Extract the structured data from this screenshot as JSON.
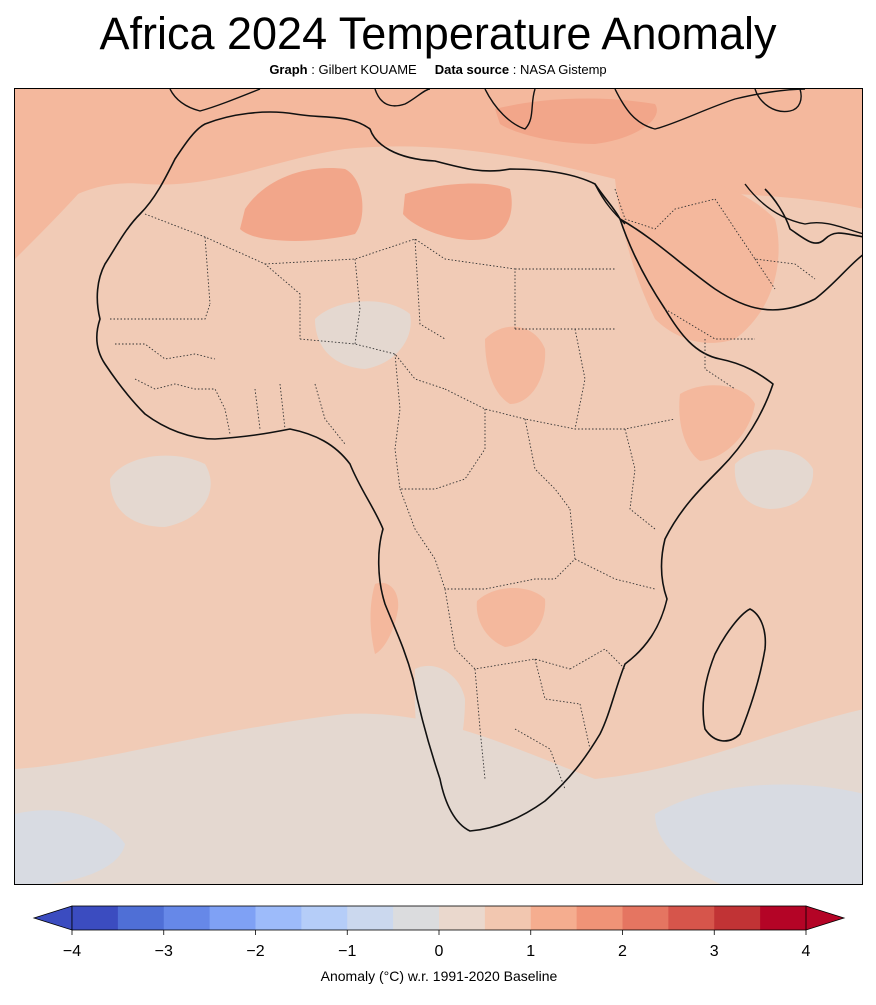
{
  "header": {
    "title": "Africa 2024 Temperature Anomaly",
    "credit_label": "Graph",
    "credit_value": "Gilbert KOUAME",
    "source_label": "Data source",
    "source_value": "NASA Gistemp"
  },
  "colorbar": {
    "ticks": [
      "−4",
      "−3",
      "−2",
      "−1",
      "0",
      "1",
      "2",
      "3",
      "4"
    ],
    "label": "Anomaly (°C) w.r. 1991-2020 Baseline",
    "range": [
      -4,
      4
    ],
    "step": 0.5,
    "colors": [
      "#3b4cc0",
      "#4f6fd6",
      "#6688e8",
      "#7fa1f5",
      "#9dbbfa",
      "#b5cdf8",
      "#cbd8ee",
      "#dbdcde",
      "#ead8cd",
      "#f2c7b0",
      "#f5ad8f",
      "#f09377",
      "#e57561",
      "#d6554b",
      "#c13335",
      "#b40426"
    ]
  },
  "map": {
    "region": "Africa",
    "palette": {
      "ocean_base": "#f1cbb6",
      "land_base": "#f0c8b3",
      "warm_1": "#f4b89d",
      "warm_2": "#f2a68a",
      "neutral": "#e4d8d0",
      "cool": "#d8dbe2",
      "coast": "#111111",
      "border": "#333333"
    }
  }
}
